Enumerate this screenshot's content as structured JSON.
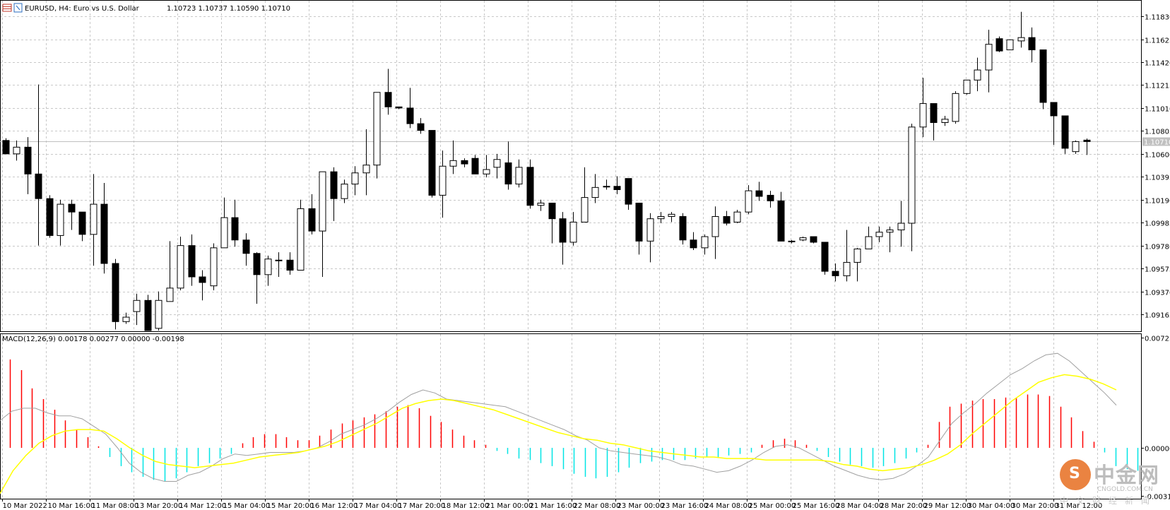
{
  "header": {
    "symbol_info": "EURUSD, H4:  Euro vs U.S. Dollar",
    "ohlc": "1.10723 1.10737 1.10590 1.10710"
  },
  "price_axis": {
    "labels": [
      "1.11830",
      "1.11625",
      "1.11420",
      "1.11215",
      "1.11010",
      "1.10805",
      "1.10600",
      "1.10395",
      "1.10190",
      "1.09985",
      "1.09780",
      "1.09575",
      "1.09370",
      "1.09165"
    ],
    "current_price": "1.10710"
  },
  "indicator": {
    "label": "MACD(12,26,9) 0.00178 0.00277 0.00000 -0.00198",
    "axis_labels": [
      "0.00723",
      "0.00000",
      "-0.00315"
    ]
  },
  "time_axis": {
    "labels": [
      "10 Mar 2022",
      "10 Mar 16:00",
      "11 Mar 08:00",
      "13 Mar 20:00",
      "14 Mar 12:00",
      "15 Mar 04:00",
      "15 Mar 20:00",
      "16 Mar 12:00",
      "17 Mar 04:00",
      "17 Mar 20:00",
      "18 Mar 12:00",
      "21 Mar 00:00",
      "21 Mar 16:00",
      "22 Mar 08:00",
      "23 Mar 00:00",
      "23 Mar 16:00",
      "24 Mar 08:00",
      "25 Mar 00:00",
      "25 Mar 16:00",
      "28 Mar 04:00",
      "28 Mar 20:00",
      "29 Mar 12:00",
      "30 Mar 04:00",
      "30 Mar 20:00",
      "31 Mar 12:00"
    ]
  },
  "watermark": {
    "logo_glyph": "S",
    "name": "中金网",
    "url": "CNGOLD.COM.CN",
    "sub": "中文财经新闻"
  },
  "colors": {
    "bull_body": "#ffffff",
    "bear_body": "#000000",
    "grid": "#c8c8c8",
    "macd_hist_pos": "#ff0000",
    "macd_hist_neg": "#00e5e5",
    "macd_line": "#a0a0a0",
    "signal_line": "#ffff00"
  },
  "chart_data": {
    "type": "candlestick",
    "symbol": "EURUSD",
    "timeframe": "H4",
    "ylim": [
      1.0902,
      1.119
    ],
    "candles": [
      {
        "o": 1.1072,
        "h": 1.1074,
        "l": 1.106,
        "c": 1.106
      },
      {
        "o": 1.106,
        "h": 1.1072,
        "l": 1.1054,
        "c": 1.1066
      },
      {
        "o": 1.1066,
        "h": 1.1075,
        "l": 1.1024,
        "c": 1.1042
      },
      {
        "o": 1.1042,
        "h": 1.1122,
        "l": 1.0978,
        "c": 1.102
      },
      {
        "o": 1.102,
        "h": 1.1023,
        "l": 1.0985,
        "c": 1.0987
      },
      {
        "o": 1.0987,
        "h": 1.1019,
        "l": 1.0978,
        "c": 1.1015
      },
      {
        "o": 1.1015,
        "h": 1.1019,
        "l": 1.0992,
        "c": 1.1008
      },
      {
        "o": 1.1008,
        "h": 1.1008,
        "l": 1.0982,
        "c": 1.0988
      },
      {
        "o": 1.0988,
        "h": 1.1042,
        "l": 1.096,
        "c": 1.1015
      },
      {
        "o": 1.1015,
        "h": 1.1034,
        "l": 1.0953,
        "c": 1.0962
      },
      {
        "o": 1.0962,
        "h": 1.0966,
        "l": 1.0903,
        "c": 1.091
      },
      {
        "o": 1.091,
        "h": 1.0918,
        "l": 1.0908,
        "c": 1.0914
      },
      {
        "o": 1.0919,
        "h": 1.0935,
        "l": 1.0907,
        "c": 1.0929
      },
      {
        "o": 1.0929,
        "h": 1.0934,
        "l": 1.0902,
        "c": 1.0902
      },
      {
        "o": 1.0904,
        "h": 1.0937,
        "l": 1.0902,
        "c": 1.0929
      },
      {
        "o": 1.0928,
        "h": 1.0982,
        "l": 1.0928,
        "c": 1.094
      },
      {
        "o": 1.094,
        "h": 1.0986,
        "l": 1.0938,
        "c": 1.0978
      },
      {
        "o": 1.0978,
        "h": 1.0988,
        "l": 1.0942,
        "c": 1.095
      },
      {
        "o": 1.095,
        "h": 1.0956,
        "l": 1.0929,
        "c": 1.0945
      },
      {
        "o": 1.0942,
        "h": 1.098,
        "l": 1.0938,
        "c": 1.0976
      },
      {
        "o": 1.0976,
        "h": 1.1021,
        "l": 1.0976,
        "c": 1.1003
      },
      {
        "o": 1.1003,
        "h": 1.1019,
        "l": 1.0977,
        "c": 1.0983
      },
      {
        "o": 1.0983,
        "h": 1.0989,
        "l": 1.096,
        "c": 1.0971
      },
      {
        "o": 1.0971,
        "h": 1.0972,
        "l": 1.0926,
        "c": 1.0952
      },
      {
        "o": 1.0952,
        "h": 1.0969,
        "l": 1.0942,
        "c": 1.0966
      },
      {
        "o": 1.0965,
        "h": 1.0972,
        "l": 1.095,
        "c": 1.0965
      },
      {
        "o": 1.0965,
        "h": 1.0972,
        "l": 1.0952,
        "c": 1.0956
      },
      {
        "o": 1.0956,
        "h": 1.1019,
        "l": 1.0956,
        "c": 1.1011
      },
      {
        "o": 1.1011,
        "h": 1.1024,
        "l": 1.0988,
        "c": 1.0991
      },
      {
        "o": 1.0991,
        "h": 1.1044,
        "l": 1.095,
        "c": 1.1044
      },
      {
        "o": 1.1044,
        "h": 1.1048,
        "l": 1.1,
        "c": 1.102
      },
      {
        "o": 1.102,
        "h": 1.1037,
        "l": 1.1016,
        "c": 1.1033
      },
      {
        "o": 1.1033,
        "h": 1.1049,
        "l": 1.1023,
        "c": 1.1043
      },
      {
        "o": 1.1043,
        "h": 1.1082,
        "l": 1.1023,
        "c": 1.105
      },
      {
        "o": 1.105,
        "h": 1.1115,
        "l": 1.1038,
        "c": 1.1115
      },
      {
        "o": 1.1115,
        "h": 1.1136,
        "l": 1.1095,
        "c": 1.1102
      },
      {
        "o": 1.1102,
        "h": 1.1102,
        "l": 1.11,
        "c": 1.1101
      },
      {
        "o": 1.1101,
        "h": 1.1119,
        "l": 1.1083,
        "c": 1.1087
      },
      {
        "o": 1.1087,
        "h": 1.1092,
        "l": 1.1078,
        "c": 1.1081
      },
      {
        "o": 1.1081,
        "h": 1.1081,
        "l": 1.1021,
        "c": 1.1023
      },
      {
        "o": 1.1023,
        "h": 1.1063,
        "l": 1.1003,
        "c": 1.1049
      },
      {
        "o": 1.1049,
        "h": 1.1072,
        "l": 1.1042,
        "c": 1.1054
      },
      {
        "o": 1.1054,
        "h": 1.1056,
        "l": 1.1048,
        "c": 1.1051
      },
      {
        "o": 1.1056,
        "h": 1.1059,
        "l": 1.1042,
        "c": 1.1042
      },
      {
        "o": 1.1042,
        "h": 1.1059,
        "l": 1.1039,
        "c": 1.1046
      },
      {
        "o": 1.1048,
        "h": 1.106,
        "l": 1.1038,
        "c": 1.1055
      },
      {
        "o": 1.1052,
        "h": 1.1071,
        "l": 1.1028,
        "c": 1.1033
      },
      {
        "o": 1.1033,
        "h": 1.1055,
        "l": 1.103,
        "c": 1.1048
      },
      {
        "o": 1.1048,
        "h": 1.1055,
        "l": 1.1011,
        "c": 1.1014
      },
      {
        "o": 1.1014,
        "h": 1.1019,
        "l": 1.1009,
        "c": 1.1016
      },
      {
        "o": 1.1016,
        "h": 1.1016,
        "l": 1.098,
        "c": 1.1002
      },
      {
        "o": 1.1002,
        "h": 1.1008,
        "l": 1.0961,
        "c": 1.0981
      },
      {
        "o": 1.0981,
        "h": 1.1008,
        "l": 1.0978,
        "c": 1.0999
      },
      {
        "o": 1.0999,
        "h": 1.1048,
        "l": 1.0999,
        "c": 1.1021
      },
      {
        "o": 1.1021,
        "h": 1.1042,
        "l": 1.1016,
        "c": 1.103
      },
      {
        "o": 1.1031,
        "h": 1.1037,
        "l": 1.1028,
        "c": 1.1031
      },
      {
        "o": 1.1031,
        "h": 1.104,
        "l": 1.1024,
        "c": 1.1028
      },
      {
        "o": 1.1038,
        "h": 1.1038,
        "l": 1.101,
        "c": 1.1015
      },
      {
        "o": 1.1016,
        "h": 1.1016,
        "l": 1.097,
        "c": 1.0982
      },
      {
        "o": 1.0982,
        "h": 1.1007,
        "l": 1.0963,
        "c": 1.1002
      },
      {
        "o": 1.1002,
        "h": 1.1008,
        "l": 1.0998,
        "c": 1.1004
      },
      {
        "o": 1.1004,
        "h": 1.1008,
        "l": 1.0999,
        "c": 1.1006
      },
      {
        "o": 1.1004,
        "h": 1.1007,
        "l": 1.0979,
        "c": 1.0983
      },
      {
        "o": 1.0983,
        "h": 1.099,
        "l": 1.0974,
        "c": 1.0976
      },
      {
        "o": 1.0976,
        "h": 1.0988,
        "l": 1.097,
        "c": 1.0986
      },
      {
        "o": 1.0986,
        "h": 1.1013,
        "l": 1.0966,
        "c": 1.1004
      },
      {
        "o": 1.1004,
        "h": 1.1009,
        "l": 1.0996,
        "c": 1.0998
      },
      {
        "o": 1.0999,
        "h": 1.101,
        "l": 1.0998,
        "c": 1.1008
      },
      {
        "o": 1.1008,
        "h": 1.1032,
        "l": 1.1006,
        "c": 1.1027
      },
      {
        "o": 1.1027,
        "h": 1.1035,
        "l": 1.1018,
        "c": 1.1022
      },
      {
        "o": 1.1023,
        "h": 1.1027,
        "l": 1.1012,
        "c": 1.1018
      },
      {
        "o": 1.1018,
        "h": 1.1026,
        "l": 1.0982,
        "c": 1.0982
      },
      {
        "o": 1.0982,
        "h": 1.0983,
        "l": 1.098,
        "c": 1.0982
      },
      {
        "o": 1.0983,
        "h": 1.0986,
        "l": 1.0982,
        "c": 1.0985
      },
      {
        "o": 1.0986,
        "h": 1.0986,
        "l": 1.098,
        "c": 1.0981
      },
      {
        "o": 1.0981,
        "h": 1.0981,
        "l": 1.0952,
        "c": 1.0955
      },
      {
        "o": 1.0955,
        "h": 1.0962,
        "l": 1.0946,
        "c": 1.0951
      },
      {
        "o": 1.0951,
        "h": 1.0992,
        "l": 1.0946,
        "c": 1.0963
      },
      {
        "o": 1.0963,
        "h": 1.0976,
        "l": 1.0946,
        "c": 1.0975
      },
      {
        "o": 1.0975,
        "h": 1.0995,
        "l": 1.0975,
        "c": 1.0986
      },
      {
        "o": 1.0986,
        "h": 1.0995,
        "l": 1.0981,
        "c": 1.099
      },
      {
        "o": 1.099,
        "h": 1.0995,
        "l": 1.0972,
        "c": 1.0992
      },
      {
        "o": 1.0992,
        "h": 1.1018,
        "l": 1.0977,
        "c": 1.0998
      },
      {
        "o": 1.0998,
        "h": 1.1087,
        "l": 1.0973,
        "c": 1.1084
      },
      {
        "o": 1.1084,
        "h": 1.1128,
        "l": 1.1075,
        "c": 1.1105
      },
      {
        "o": 1.1105,
        "h": 1.1105,
        "l": 1.1072,
        "c": 1.1088
      },
      {
        "o": 1.1088,
        "h": 1.1094,
        "l": 1.1085,
        "c": 1.1091
      },
      {
        "o": 1.1089,
        "h": 1.1116,
        "l": 1.1087,
        "c": 1.1114
      },
      {
        "o": 1.1114,
        "h": 1.1124,
        "l": 1.1113,
        "c": 1.1126
      },
      {
        "o": 1.1126,
        "h": 1.1146,
        "l": 1.1116,
        "c": 1.1135
      },
      {
        "o": 1.1135,
        "h": 1.1171,
        "l": 1.1115,
        "c": 1.1158
      },
      {
        "o": 1.1163,
        "h": 1.1165,
        "l": 1.1151,
        "c": 1.1152
      },
      {
        "o": 1.1153,
        "h": 1.1162,
        "l": 1.1153,
        "c": 1.1162
      },
      {
        "o": 1.1161,
        "h": 1.1187,
        "l": 1.1155,
        "c": 1.1164
      },
      {
        "o": 1.1164,
        "h": 1.1173,
        "l": 1.1142,
        "c": 1.1153
      },
      {
        "o": 1.1153,
        "h": 1.1153,
        "l": 1.11,
        "c": 1.1106
      },
      {
        "o": 1.1106,
        "h": 1.1106,
        "l": 1.1068,
        "c": 1.1094
      },
      {
        "o": 1.1094,
        "h": 1.1094,
        "l": 1.106,
        "c": 1.1065
      },
      {
        "o": 1.1062,
        "h": 1.1072,
        "l": 1.106,
        "c": 1.1071
      },
      {
        "o": 1.10723,
        "h": 1.10737,
        "l": 1.1059,
        "c": 1.1071
      }
    ],
    "macd": {
      "ylim": [
        -0.00315,
        0.00723
      ],
      "histogram": [
        0.0058,
        0.0051,
        0.0039,
        0.0032,
        0.0025,
        0.0018,
        0.0012,
        0.0007,
        0.0001,
        -0.0006,
        -0.0012,
        -0.0016,
        -0.0019,
        -0.0021,
        -0.0022,
        -0.002,
        -0.0016,
        -0.0012,
        -0.001,
        -0.0007,
        -0.0004,
        0.0003,
        0.0007,
        0.0009,
        0.0009,
        0.0007,
        0.0005,
        0.0005,
        0.0008,
        0.0012,
        0.0016,
        0.0018,
        0.002,
        0.0022,
        0.0024,
        0.0027,
        0.0028,
        0.0026,
        0.0021,
        0.0017,
        0.0012,
        0.0008,
        0.0005,
        0.0002,
        -0.0002,
        -0.0004,
        -0.0007,
        -0.0008,
        -0.001,
        -0.0012,
        -0.0014,
        -0.0017,
        -0.0019,
        -0.002,
        -0.0019,
        -0.0016,
        -0.0013,
        -0.001,
        -0.0009,
        -0.0008,
        -0.0008,
        -0.0008,
        -0.0007,
        -0.0006,
        -0.0006,
        -0.0005,
        -0.0004,
        -0.0003,
        0.0002,
        0.0005,
        0.0006,
        0.0005,
        0.0002,
        -0.0002,
        -0.0006,
        -0.0009,
        -0.0011,
        -0.0012,
        -0.0013,
        -0.0012,
        -0.001,
        -0.0007,
        -0.0003,
        0.0002,
        0.0017,
        0.0027,
        0.0029,
        0.0031,
        0.0032,
        0.0032,
        0.0033,
        0.0033,
        0.0035,
        0.0035,
        0.0034,
        0.0027,
        0.002,
        0.0011,
        0.0004,
        -0.0003,
        -0.0012,
        -0.0014,
        -0.0015
      ],
      "macd_line": [
        0.0018,
        0.0024,
        0.0026,
        0.0026,
        0.0023,
        0.0021,
        0.0021,
        0.0019,
        0.0014,
        0.0009,
        0.0,
        -0.001,
        -0.0016,
        -0.002,
        -0.0022,
        -0.0022,
        -0.0018,
        -0.0016,
        -0.0012,
        -0.0007,
        -0.0004,
        -0.0005,
        -0.0004,
        -0.0003,
        -0.0003,
        -0.0003,
        -0.0002,
        0.0,
        0.0004,
        0.0009,
        0.0012,
        0.0015,
        0.0019,
        0.0024,
        0.003,
        0.0035,
        0.0038,
        0.0036,
        0.0032,
        0.0031,
        0.003,
        0.0029,
        0.0028,
        0.0027,
        0.0024,
        0.0021,
        0.0018,
        0.0015,
        0.0012,
        0.0008,
        0.0005,
        0.0,
        -0.0002,
        -0.0003,
        -0.0004,
        -0.0005,
        -0.0006,
        -0.0008,
        -0.0011,
        -0.0012,
        -0.0014,
        -0.0016,
        -0.0015,
        -0.0012,
        -0.0008,
        -0.0003,
        0.0001,
        0.0002,
        0.0,
        -0.0004,
        -0.0008,
        -0.0012,
        -0.0015,
        -0.0018,
        -0.002,
        -0.0021,
        -0.002,
        -0.0017,
        -0.0012,
        -0.0006,
        0.0005,
        0.0016,
        0.0023,
        0.0029,
        0.0036,
        0.0042,
        0.0048,
        0.0052,
        0.0057,
        0.0061,
        0.0062,
        0.0057,
        0.005,
        0.0043,
        0.0036,
        0.0028
      ],
      "signal_line": [
        -0.003,
        -0.0015,
        -0.0005,
        0.0003,
        0.0008,
        0.0011,
        0.0012,
        0.0012,
        0.0011,
        0.0006,
        0.0,
        -0.0005,
        -0.0009,
        -0.0011,
        -0.0012,
        -0.0013,
        -0.0012,
        -0.0011,
        -0.001,
        -0.0008,
        -0.0006,
        -0.0005,
        -0.0004,
        -0.0003,
        -0.0001,
        0.0001,
        0.0004,
        0.0008,
        0.0012,
        0.0016,
        0.0021,
        0.0026,
        0.0029,
        0.0031,
        0.0032,
        0.0031,
        0.0029,
        0.0027,
        0.0025,
        0.0022,
        0.0019,
        0.0016,
        0.0013,
        0.001,
        0.0008,
        0.0006,
        0.0005,
        0.0003,
        0.0002,
        0.0,
        -0.0002,
        -0.0003,
        -0.0004,
        -0.0005,
        -0.0006,
        -0.0006,
        -0.0007,
        -0.0007,
        -0.0007,
        -0.0008,
        -0.0008,
        -0.0008,
        -0.0008,
        -0.0008,
        -0.0009,
        -0.0011,
        -0.0012,
        -0.0014,
        -0.0015,
        -0.0014,
        -0.0013,
        -0.0011,
        -0.0008,
        -0.0004,
        0.0002,
        0.001,
        0.0017,
        0.0024,
        0.0031,
        0.0037,
        0.0043,
        0.0046,
        0.0048,
        0.0047,
        0.0045,
        0.0042,
        0.0038
      ]
    }
  }
}
